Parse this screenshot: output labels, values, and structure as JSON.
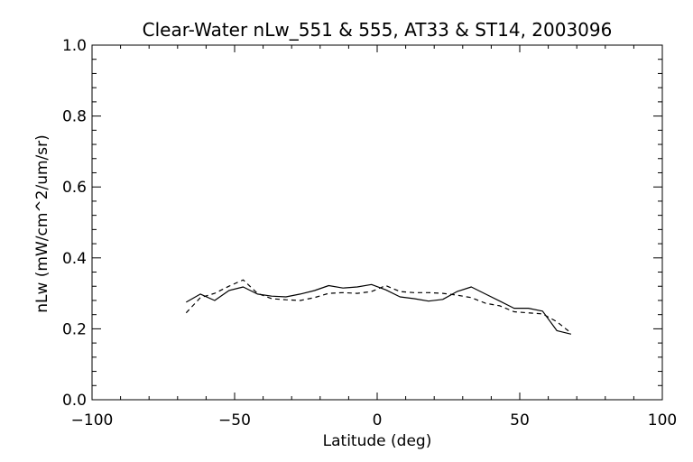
{
  "chart_data": {
    "type": "line",
    "title": "Clear-Water nLw_551 & 555, AT33 & ST14, 2003096",
    "xlabel": "Latitude (deg)",
    "ylabel": "nLw (mW/cm^2/um/sr)",
    "xlim": [
      -100,
      100
    ],
    "ylim": [
      0.0,
      1.0
    ],
    "x_ticks": [
      -100,
      -50,
      0,
      50,
      100
    ],
    "x_tick_labels": [
      "−100",
      "−50",
      "0",
      "50",
      "100"
    ],
    "y_ticks": [
      0.0,
      0.2,
      0.4,
      0.6,
      0.8,
      1.0
    ],
    "y_tick_labels": [
      "0.0",
      "0.2",
      "0.4",
      "0.6",
      "0.8",
      "1.0"
    ],
    "grid": false,
    "legend": "none",
    "series": [
      {
        "style": "solid",
        "color": "#000000",
        "x": [
          -67,
          -62,
          -57,
          -52,
          -47,
          -42,
          -37,
          -32,
          -27,
          -22,
          -17,
          -12,
          -7,
          -2,
          3,
          8,
          13,
          18,
          23,
          28,
          33,
          38,
          43,
          48,
          53,
          58,
          63,
          68
        ],
        "y": [
          0.275,
          0.298,
          0.28,
          0.308,
          0.318,
          0.298,
          0.292,
          0.29,
          0.298,
          0.308,
          0.322,
          0.315,
          0.318,
          0.325,
          0.31,
          0.29,
          0.285,
          0.278,
          0.283,
          0.305,
          0.318,
          0.298,
          0.278,
          0.258,
          0.258,
          0.25,
          0.195,
          0.185
        ]
      },
      {
        "style": "dashed",
        "color": "#000000",
        "x": [
          -67,
          -62,
          -57,
          -52,
          -47,
          -42,
          -37,
          -32,
          -27,
          -22,
          -17,
          -12,
          -7,
          -2,
          3,
          8,
          13,
          18,
          23,
          28,
          33,
          38,
          43,
          48,
          53,
          58,
          63,
          68
        ],
        "y": [
          0.245,
          0.288,
          0.3,
          0.32,
          0.338,
          0.3,
          0.285,
          0.282,
          0.28,
          0.288,
          0.3,
          0.302,
          0.3,
          0.305,
          0.322,
          0.305,
          0.302,
          0.302,
          0.3,
          0.295,
          0.288,
          0.272,
          0.265,
          0.248,
          0.245,
          0.242,
          0.22,
          0.188
        ]
      }
    ]
  }
}
